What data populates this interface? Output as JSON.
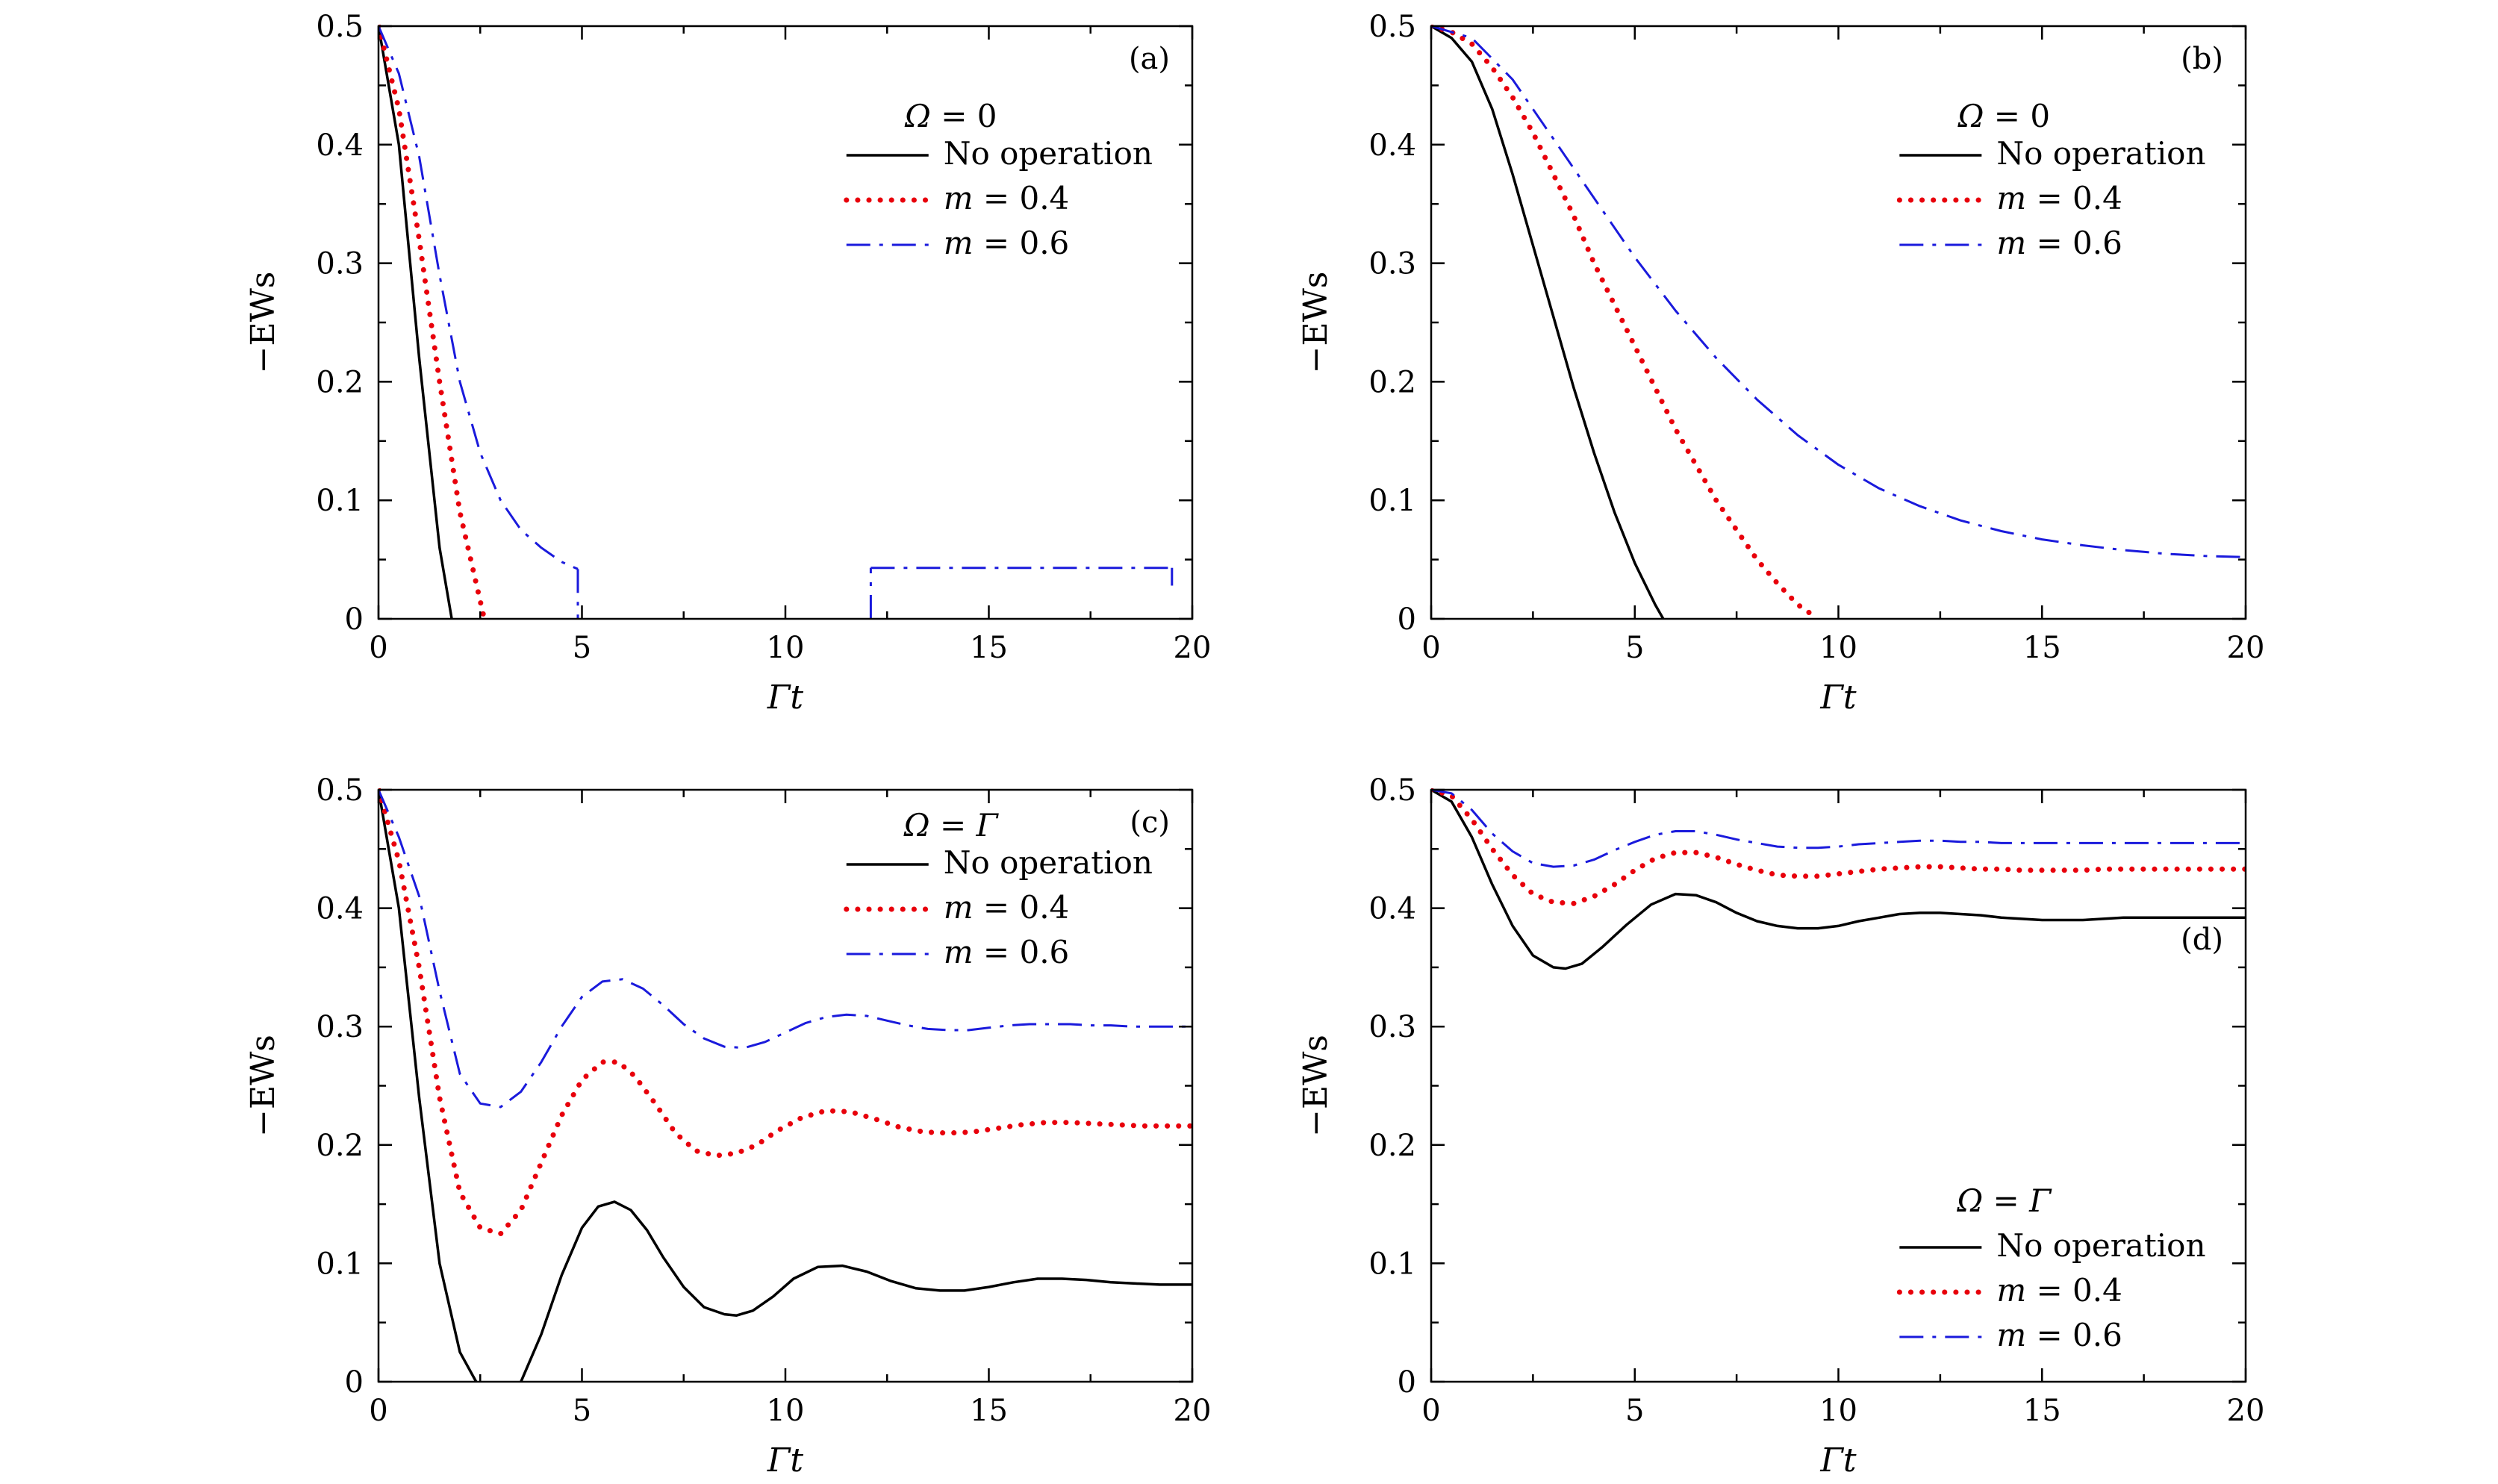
{
  "figure": {
    "style": {
      "colors": {
        "no_operation": "#000000",
        "m04": "#e8000b",
        "m06": "#1a1adc"
      }
    }
  },
  "chart_data": [
    {
      "type": "line",
      "panel_label": "(a)",
      "xlabel": "Γt",
      "ylabel": "−EWs",
      "xlim": [
        0,
        20
      ],
      "ylim": [
        0,
        0.5
      ],
      "xticks": [
        "0",
        "5",
        "10",
        "15",
        "20"
      ],
      "yticks": [
        "0",
        "0.1",
        "0.2",
        "0.3",
        "0.4",
        "0.5"
      ],
      "legend_title": "Ω = 0",
      "legend_position": "top-right",
      "series": [
        {
          "name": "No operation",
          "style": "solid",
          "color": "#000000",
          "segments": [
            {
              "x": [
                0,
                0.5,
                1.0,
                1.5,
                1.8
              ],
              "y": [
                0.5,
                0.4,
                0.22,
                0.06,
                0.0
              ]
            }
          ]
        },
        {
          "name": "m = 0.4",
          "style": "dotted",
          "color": "#e8000b",
          "segments": [
            {
              "x": [
                0,
                0.5,
                1.0,
                1.5,
                2.0,
                2.6
              ],
              "y": [
                0.5,
                0.43,
                0.32,
                0.2,
                0.09,
                0.0
              ]
            }
          ]
        },
        {
          "name": "m = 0.6",
          "style": "dashdot",
          "color": "#1a1adc",
          "segments": [
            {
              "x": [
                0,
                0.5,
                1.0,
                1.5,
                2.0,
                2.5,
                3.0,
                3.5,
                4.0,
                4.5,
                4.9
              ],
              "y": [
                0.5,
                0.46,
                0.39,
                0.29,
                0.2,
                0.14,
                0.1,
                0.075,
                0.06,
                0.048,
                0.042
              ]
            },
            {
              "x": [
                4.9,
                4.9
              ],
              "y": [
                0.042,
                0.0
              ]
            },
            {
              "x": [
                12.1,
                12.1
              ],
              "y": [
                0.0,
                0.043
              ]
            },
            {
              "x": [
                12.1,
                19.5
              ],
              "y": [
                0.043,
                0.043
              ]
            },
            {
              "x": [
                19.5,
                19.5
              ],
              "y": [
                0.043,
                0.028
              ]
            }
          ]
        }
      ]
    },
    {
      "type": "line",
      "panel_label": "(b)",
      "xlabel": "Γt",
      "ylabel": "−EWs",
      "xlim": [
        0,
        20
      ],
      "ylim": [
        0,
        0.5
      ],
      "xticks": [
        "0",
        "5",
        "10",
        "15",
        "20"
      ],
      "yticks": [
        "0",
        "0.1",
        "0.2",
        "0.3",
        "0.4",
        "0.5"
      ],
      "legend_title": "Ω = 0",
      "legend_position": "top-right",
      "series": [
        {
          "name": "No operation",
          "style": "solid",
          "color": "#000000",
          "segments": [
            {
              "x": [
                0,
                0.5,
                1,
                1.5,
                2,
                2.5,
                3,
                3.5,
                4,
                4.5,
                5,
                5.5,
                5.7
              ],
              "y": [
                0.5,
                0.49,
                0.47,
                0.43,
                0.375,
                0.315,
                0.255,
                0.195,
                0.14,
                0.09,
                0.047,
                0.012,
                0.0
              ]
            }
          ]
        },
        {
          "name": "m = 0.4",
          "style": "dotted",
          "color": "#e8000b",
          "segments": [
            {
              "x": [
                0,
                0.5,
                1,
                1.5,
                2,
                2.5,
                3,
                3.5,
                4,
                4.5,
                5,
                5.5,
                6,
                6.5,
                7,
                7.5,
                8,
                8.5,
                9,
                9.5
              ],
              "y": [
                0.5,
                0.495,
                0.485,
                0.465,
                0.44,
                0.41,
                0.375,
                0.34,
                0.3,
                0.265,
                0.23,
                0.195,
                0.16,
                0.13,
                0.1,
                0.075,
                0.05,
                0.03,
                0.012,
                0.0
              ]
            }
          ]
        },
        {
          "name": "m = 0.6",
          "style": "dashdot",
          "color": "#1a1adc",
          "segments": [
            {
              "x": [
                0,
                1,
                2,
                3,
                4,
                5,
                6,
                7,
                8,
                9,
                10,
                11,
                12,
                13,
                14,
                15,
                16,
                17,
                18,
                19,
                20
              ],
              "y": [
                0.5,
                0.49,
                0.455,
                0.405,
                0.355,
                0.305,
                0.26,
                0.22,
                0.185,
                0.155,
                0.13,
                0.11,
                0.095,
                0.083,
                0.074,
                0.067,
                0.062,
                0.058,
                0.055,
                0.053,
                0.052
              ]
            }
          ]
        }
      ]
    },
    {
      "type": "line",
      "panel_label": "(c)",
      "xlabel": "Γt",
      "ylabel": "−EWs",
      "xlim": [
        0,
        20
      ],
      "ylim": [
        0,
        0.5
      ],
      "xticks": [
        "0",
        "5",
        "10",
        "15",
        "20"
      ],
      "yticks": [
        "0",
        "0.1",
        "0.2",
        "0.3",
        "0.4",
        "0.5"
      ],
      "legend_title": "Ω = Γ",
      "legend_position": "top-right",
      "series": [
        {
          "name": "No operation",
          "style": "solid",
          "color": "#000000",
          "segments": [
            {
              "x": [
                0,
                0.5,
                1,
                1.5,
                2,
                2.4
              ],
              "y": [
                0.5,
                0.4,
                0.24,
                0.1,
                0.025,
                0.0
              ]
            },
            {
              "x": [
                3.5,
                4,
                4.5,
                5,
                5.4,
                5.8,
                6.2,
                6.6,
                7,
                7.5,
                8,
                8.5,
                8.8,
                9.2,
                9.7,
                10.2,
                10.8,
                11.4,
                12,
                12.6,
                13.2,
                13.8,
                14.4,
                15,
                15.6,
                16.2,
                16.8,
                17.4,
                18,
                18.6,
                19.2,
                20
              ],
              "y": [
                0.0,
                0.04,
                0.09,
                0.13,
                0.148,
                0.152,
                0.145,
                0.128,
                0.105,
                0.08,
                0.063,
                0.057,
                0.056,
                0.06,
                0.072,
                0.087,
                0.097,
                0.098,
                0.093,
                0.085,
                0.079,
                0.077,
                0.077,
                0.08,
                0.084,
                0.087,
                0.087,
                0.086,
                0.084,
                0.083,
                0.082,
                0.082
              ]
            }
          ]
        },
        {
          "name": "m = 0.4",
          "style": "dotted",
          "color": "#e8000b",
          "segments": [
            {
              "x": [
                0,
                0.5,
                1,
                1.5,
                2,
                2.5,
                3,
                3.5,
                4,
                4.5,
                5,
                5.5,
                5.9,
                6.3,
                6.8,
                7.3,
                7.8,
                8.3,
                8.8,
                9.3,
                9.8,
                10.4,
                11,
                11.6,
                12.2,
                12.8,
                13.4,
                14,
                14.6,
                15.2,
                15.8,
                16.4,
                17,
                17.6,
                18.2,
                18.8,
                19.4,
                20
              ],
              "y": [
                0.5,
                0.44,
                0.35,
                0.24,
                0.16,
                0.13,
                0.125,
                0.145,
                0.185,
                0.225,
                0.255,
                0.27,
                0.27,
                0.258,
                0.235,
                0.21,
                0.195,
                0.191,
                0.193,
                0.2,
                0.212,
                0.223,
                0.229,
                0.228,
                0.222,
                0.215,
                0.211,
                0.21,
                0.211,
                0.214,
                0.217,
                0.219,
                0.219,
                0.218,
                0.217,
                0.216,
                0.216,
                0.216
              ]
            }
          ]
        },
        {
          "name": "m = 0.6",
          "style": "dashdot",
          "color": "#1a1adc",
          "segments": [
            {
              "x": [
                0,
                0.5,
                1,
                1.5,
                2,
                2.5,
                3,
                3.5,
                4,
                4.5,
                5,
                5.5,
                6,
                6.5,
                7,
                7.5,
                8,
                8.5,
                9,
                9.5,
                10,
                10.5,
                11,
                11.5,
                12,
                12.5,
                13,
                13.5,
                14,
                14.5,
                15,
                15.5,
                16,
                16.5,
                17,
                17.5,
                18,
                18.5,
                19,
                19.5,
                20
              ],
              "y": [
                0.5,
                0.46,
                0.41,
                0.33,
                0.26,
                0.235,
                0.232,
                0.245,
                0.27,
                0.3,
                0.325,
                0.338,
                0.34,
                0.332,
                0.318,
                0.302,
                0.29,
                0.283,
                0.282,
                0.287,
                0.295,
                0.303,
                0.308,
                0.31,
                0.309,
                0.305,
                0.301,
                0.298,
                0.297,
                0.297,
                0.299,
                0.301,
                0.302,
                0.302,
                0.302,
                0.301,
                0.301,
                0.3,
                0.3,
                0.3,
                0.3
              ]
            }
          ]
        }
      ]
    },
    {
      "type": "line",
      "panel_label": "(d)",
      "xlabel": "Γt",
      "ylabel": "−EWs",
      "xlim": [
        0,
        20
      ],
      "ylim": [
        0,
        0.5
      ],
      "xticks": [
        "0",
        "5",
        "10",
        "15",
        "20"
      ],
      "yticks": [
        "0",
        "0.1",
        "0.2",
        "0.3",
        "0.4",
        "0.5"
      ],
      "legend_title": "Ω = Γ",
      "legend_position": "bottom-right",
      "series": [
        {
          "name": "No operation",
          "style": "solid",
          "color": "#000000",
          "segments": [
            {
              "x": [
                0,
                0.5,
                1,
                1.5,
                2,
                2.5,
                3,
                3.3,
                3.7,
                4.2,
                4.8,
                5.4,
                6,
                6.5,
                7,
                7.5,
                8,
                8.5,
                9,
                9.5,
                10,
                10.5,
                11,
                11.5,
                12,
                12.5,
                13,
                13.5,
                14,
                14.5,
                15,
                15.5,
                16,
                16.5,
                17,
                17.5,
                18,
                18.5,
                19,
                19.5,
                20
              ],
              "y": [
                0.5,
                0.49,
                0.46,
                0.42,
                0.385,
                0.36,
                0.35,
                0.349,
                0.353,
                0.367,
                0.386,
                0.403,
                0.412,
                0.411,
                0.405,
                0.396,
                0.389,
                0.385,
                0.383,
                0.383,
                0.385,
                0.389,
                0.392,
                0.395,
                0.396,
                0.396,
                0.395,
                0.394,
                0.392,
                0.391,
                0.39,
                0.39,
                0.39,
                0.391,
                0.392,
                0.392,
                0.392,
                0.392,
                0.392,
                0.392,
                0.392
              ]
            }
          ]
        },
        {
          "name": "m = 0.4",
          "style": "dotted",
          "color": "#e8000b",
          "segments": [
            {
              "x": [
                0,
                0.5,
                1,
                1.5,
                2,
                2.5,
                3,
                3.5,
                4,
                4.5,
                5,
                5.5,
                6,
                6.5,
                7,
                7.5,
                8,
                8.5,
                9,
                9.5,
                10,
                10.5,
                11,
                11.5,
                12,
                12.5,
                13,
                13.5,
                14,
                14.5,
                15,
                15.5,
                16,
                16.5,
                17,
                17.5,
                18,
                18.5,
                19,
                19.5,
                20
              ],
              "y": [
                0.5,
                0.495,
                0.475,
                0.45,
                0.428,
                0.412,
                0.405,
                0.404,
                0.41,
                0.42,
                0.432,
                0.442,
                0.447,
                0.447,
                0.443,
                0.437,
                0.432,
                0.428,
                0.427,
                0.427,
                0.429,
                0.431,
                0.433,
                0.434,
                0.435,
                0.435,
                0.434,
                0.433,
                0.433,
                0.432,
                0.432,
                0.432,
                0.432,
                0.433,
                0.433,
                0.433,
                0.433,
                0.433,
                0.433,
                0.433,
                0.433
              ]
            }
          ]
        },
        {
          "name": "m = 0.6",
          "style": "dashdot",
          "color": "#1a1adc",
          "segments": [
            {
              "x": [
                0,
                0.5,
                1,
                1.5,
                2,
                2.5,
                3,
                3.5,
                4,
                4.5,
                5,
                5.5,
                6,
                6.5,
                7,
                7.5,
                8,
                8.5,
                9,
                9.5,
                10,
                10.5,
                11,
                11.5,
                12,
                12.5,
                13,
                13.5,
                14,
                14.5,
                15,
                15.5,
                16,
                16.5,
                17,
                17.5,
                18,
                18.5,
                19,
                19.5,
                20
              ],
              "y": [
                0.5,
                0.497,
                0.483,
                0.463,
                0.448,
                0.438,
                0.435,
                0.436,
                0.441,
                0.449,
                0.456,
                0.462,
                0.465,
                0.465,
                0.462,
                0.458,
                0.455,
                0.452,
                0.451,
                0.451,
                0.452,
                0.454,
                0.455,
                0.456,
                0.457,
                0.457,
                0.456,
                0.456,
                0.455,
                0.455,
                0.455,
                0.455,
                0.455,
                0.455,
                0.455,
                0.455,
                0.455,
                0.455,
                0.455,
                0.455,
                0.455
              ]
            }
          ]
        }
      ]
    }
  ]
}
